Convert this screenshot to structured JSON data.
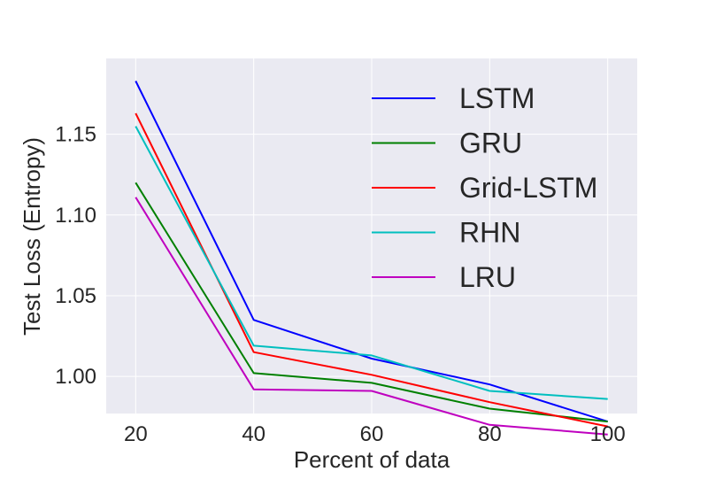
{
  "chart_data": {
    "type": "line",
    "xlabel": "Percent of data",
    "ylabel": "Test Loss (Entropy)",
    "x": [
      20,
      40,
      60,
      80,
      100
    ],
    "xticks": [
      "20",
      "40",
      "60",
      "80",
      "100"
    ],
    "yticks": [
      "1.00",
      "1.05",
      "1.10",
      "1.15"
    ],
    "ytick_values": [
      1.0,
      1.05,
      1.1,
      1.15
    ],
    "xlim": [
      15,
      105
    ],
    "ylim": [
      0.977,
      1.197
    ],
    "grid": true,
    "background": "#eaeaf2",
    "legend_position": "top-right",
    "series": [
      {
        "name": "LSTM",
        "color": "#0000ff",
        "values": [
          1.183,
          1.035,
          1.011,
          0.995,
          0.972
        ]
      },
      {
        "name": "GRU",
        "color": "#008000",
        "values": [
          1.12,
          1.002,
          0.996,
          0.98,
          0.972
        ]
      },
      {
        "name": "Grid-LSTM",
        "color": "#ff0000",
        "values": [
          1.163,
          1.015,
          1.001,
          0.984,
          0.969
        ]
      },
      {
        "name": "RHN",
        "color": "#00bfbf",
        "values": [
          1.155,
          1.019,
          1.013,
          0.991,
          0.986
        ]
      },
      {
        "name": "LRU",
        "color": "#bf00bf",
        "values": [
          1.111,
          0.992,
          0.991,
          0.97,
          0.964
        ]
      }
    ]
  }
}
